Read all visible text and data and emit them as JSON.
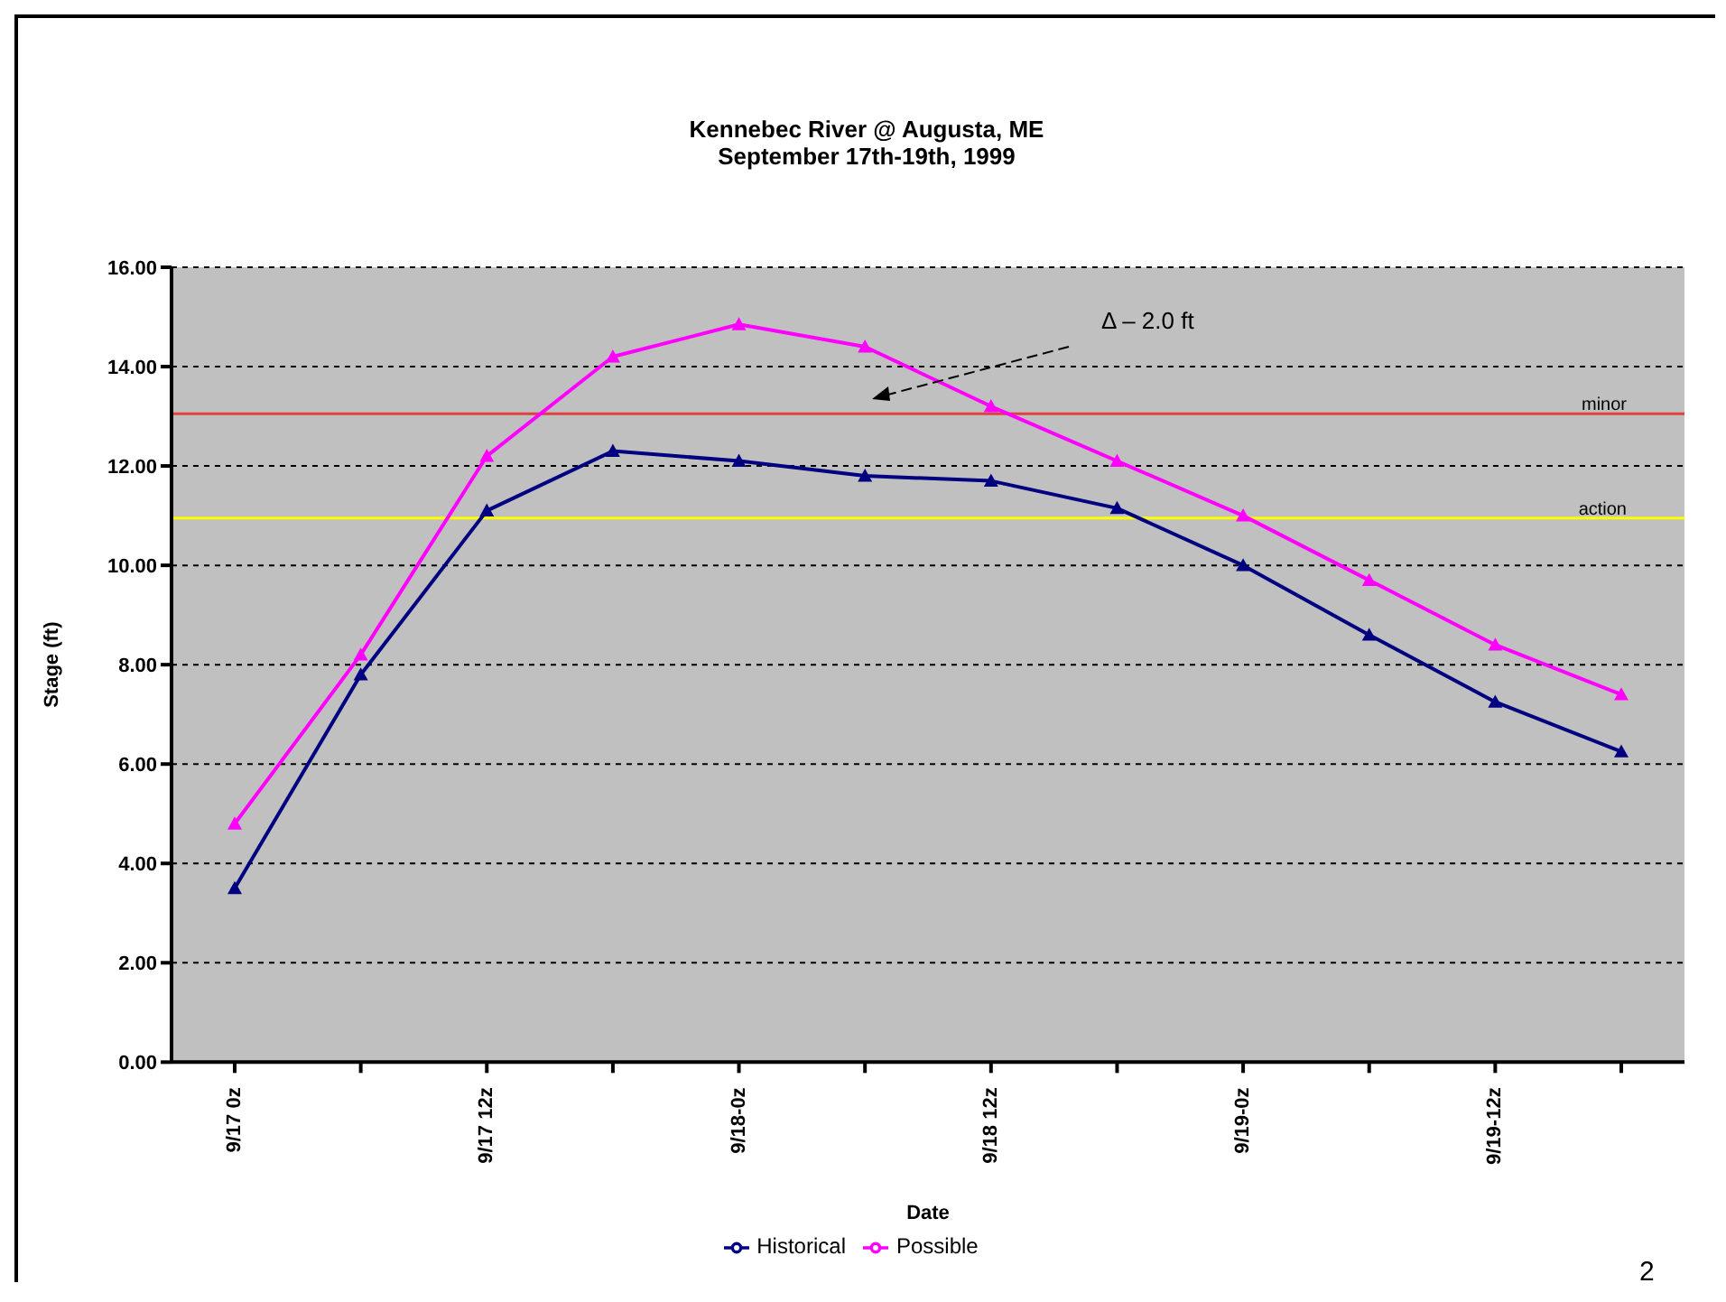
{
  "chart_data": {
    "type": "line",
    "title": "Kennebec River @ Augusta, ME",
    "subtitle": "September 17th-19th, 1999",
    "xlabel": "Date",
    "ylabel": "Stage (ft)",
    "categories": [
      "9/17 0z",
      null,
      "9/17 12z",
      null,
      "9/18-0z",
      null,
      "9/18 12z",
      null,
      "9/19-0z",
      null,
      "9/19-12z",
      null
    ],
    "series": [
      {
        "name": "Historical",
        "color": "#000080",
        "values": [
          3.5,
          7.8,
          11.1,
          12.3,
          12.1,
          11.8,
          11.7,
          11.15,
          10.0,
          8.6,
          7.25,
          6.25
        ]
      },
      {
        "name": "Possible",
        "color": "#ff00ff",
        "values": [
          4.8,
          8.2,
          12.2,
          14.2,
          14.85,
          14.4,
          13.2,
          12.1,
          11.0,
          9.7,
          8.4,
          7.4
        ]
      }
    ],
    "ylim": [
      0,
      16
    ],
    "yticks": [
      {
        "value": 0,
        "label": "0.00"
      },
      {
        "value": 2,
        "label": "2.00"
      },
      {
        "value": 4,
        "label": "4.00"
      },
      {
        "value": 6,
        "label": "6.00"
      },
      {
        "value": 8,
        "label": "8.00"
      },
      {
        "value": 10,
        "label": "10.00"
      },
      {
        "value": 12,
        "label": "12.00"
      },
      {
        "value": 14,
        "label": "14.00"
      },
      {
        "value": 16,
        "label": "16.00"
      }
    ],
    "ref_lines": [
      {
        "axis": "y",
        "value": 13.05,
        "label": "minor",
        "color": "#e04040"
      },
      {
        "axis": "y",
        "value": 10.95,
        "label": "action",
        "color": "#ffff00"
      }
    ],
    "annotations": [
      "Δ – 2.0 ft",
      "2"
    ],
    "grid": "y",
    "legend": "bottom",
    "marker": "triangle",
    "line_style": "solid"
  }
}
